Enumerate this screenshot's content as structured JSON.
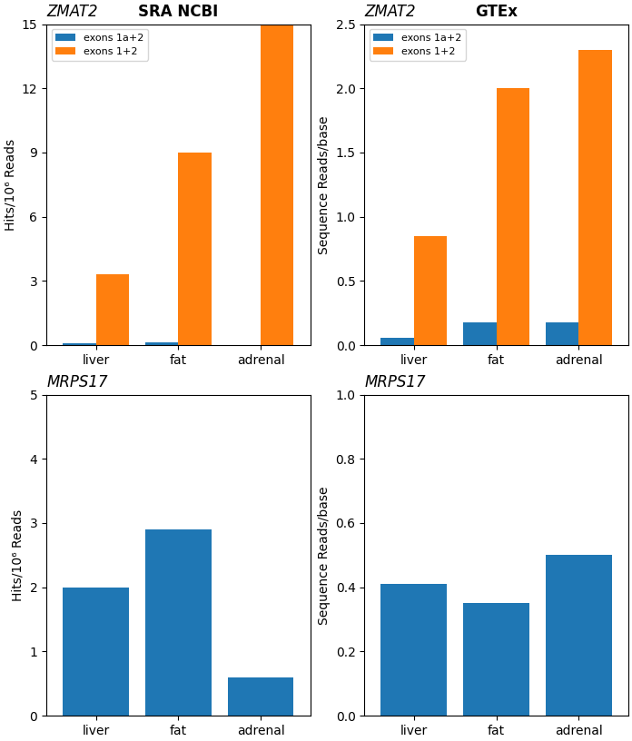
{
  "chart_data": [
    {
      "type": "bar",
      "title": "SRA NCBI",
      "subtitle": "ZMAT2",
      "categories": [
        "liver",
        "fat",
        "adrenal"
      ],
      "series": [
        {
          "name": "exons 1a+2",
          "values": [
            0.08,
            0.12,
            0.0
          ]
        },
        {
          "name": "exons 1+2",
          "values": [
            3.3,
            9.0,
            15.0
          ]
        }
      ],
      "ylabel": "Hits/10⁶ Reads",
      "ylim": [
        0,
        15
      ],
      "yticks": [
        0,
        3,
        6,
        9,
        12,
        15
      ],
      "legend": "upper left"
    },
    {
      "type": "bar",
      "title": "GTEx",
      "subtitle": "ZMAT2",
      "categories": [
        "liver",
        "fat",
        "adrenal"
      ],
      "series": [
        {
          "name": "exons 1a+2",
          "values": [
            0.06,
            0.18,
            0.18
          ]
        },
        {
          "name": "exons 1+2",
          "values": [
            0.85,
            2.0,
            2.3
          ]
        }
      ],
      "ylabel": "Sequence Reads/base",
      "ylim": [
        0,
        2.5
      ],
      "yticks": [
        0.0,
        0.5,
        1.0,
        1.5,
        2.0,
        2.5
      ],
      "legend": "upper left"
    },
    {
      "type": "bar",
      "title": "MRPS17",
      "categories": [
        "liver",
        "fat",
        "adrenal"
      ],
      "values": [
        2.0,
        2.9,
        0.6
      ],
      "ylabel": "Hits/10⁶ Reads",
      "ylim": [
        0,
        5
      ],
      "yticks": [
        0,
        1,
        2,
        3,
        4,
        5
      ]
    },
    {
      "type": "bar",
      "title": "MRPS17",
      "categories": [
        "liver",
        "fat",
        "adrenal"
      ],
      "values": [
        0.41,
        0.35,
        0.5
      ],
      "ylabel": "Sequence Reads/base",
      "ylim": [
        0,
        1.0
      ],
      "yticks": [
        0.0,
        0.2,
        0.4,
        0.6,
        0.8,
        1.0
      ]
    }
  ]
}
